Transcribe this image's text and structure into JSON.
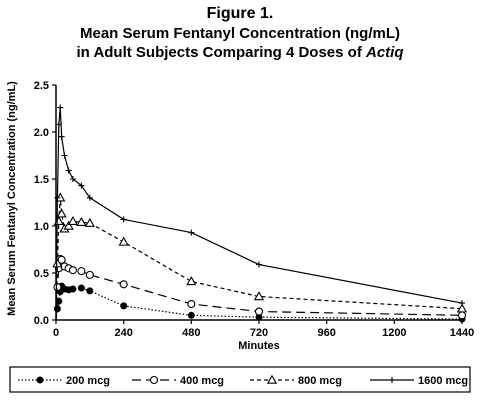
{
  "figure_label": "Figure 1.",
  "title_line2": "Mean Serum Fentanyl Concentration (ng/mL)",
  "title_line3_prefix": "in Adult Subjects Comparing 4 Doses of ",
  "title_line3_drug": "Actiq",
  "chart_data": {
    "type": "line",
    "title": "Mean Serum Fentanyl Concentration (ng/mL) in Adult Subjects Comparing 4 Doses of Actiq",
    "xlabel": "Minutes",
    "ylabel": "Mean Serum Fentanyl Concentration (ng/mL)",
    "xlim": [
      0,
      1440
    ],
    "ylim": [
      0,
      2.5
    ],
    "xticks": [
      "0",
      "240",
      "480",
      "720",
      "960",
      "1200",
      "1440"
    ],
    "yticks": [
      "0.0",
      "0.5",
      "1.0",
      "1.5",
      "2.0",
      "2.5"
    ],
    "legend_position": "bottom",
    "series": [
      {
        "name": "200 mcg",
        "style": "dotted",
        "marker": "filled-circle",
        "x": [
          0,
          5,
          10,
          15,
          20,
          30,
          45,
          60,
          90,
          120,
          240,
          480,
          720,
          1440
        ],
        "y": [
          0,
          0.12,
          0.2,
          0.3,
          0.36,
          0.33,
          0.32,
          0.33,
          0.34,
          0.31,
          0.15,
          0.05,
          0.03,
          0.01
        ]
      },
      {
        "name": "400 mcg",
        "style": "long-dash",
        "marker": "open-circle",
        "x": [
          0,
          5,
          10,
          15,
          20,
          30,
          45,
          60,
          90,
          120,
          240,
          480,
          720,
          1440
        ],
        "y": [
          0,
          0.35,
          0.55,
          0.65,
          0.64,
          0.57,
          0.55,
          0.53,
          0.52,
          0.48,
          0.38,
          0.17,
          0.09,
          0.05
        ]
      },
      {
        "name": "800 mcg",
        "style": "short-dash",
        "marker": "open-triangle",
        "x": [
          0,
          5,
          10,
          15,
          20,
          30,
          45,
          60,
          90,
          120,
          240,
          480,
          720,
          1440
        ],
        "y": [
          0,
          0.6,
          1.05,
          1.3,
          1.13,
          0.97,
          1.0,
          1.05,
          1.04,
          1.03,
          0.83,
          0.41,
          0.25,
          0.12
        ]
      },
      {
        "name": "1600 mcg",
        "style": "solid",
        "marker": "plus",
        "x": [
          0,
          5,
          10,
          15,
          20,
          30,
          45,
          60,
          90,
          120,
          240,
          480,
          720,
          1440
        ],
        "y": [
          0,
          1.3,
          2.08,
          2.26,
          1.95,
          1.75,
          1.59,
          1.5,
          1.43,
          1.3,
          1.07,
          0.93,
          0.59,
          0.18
        ]
      }
    ]
  }
}
